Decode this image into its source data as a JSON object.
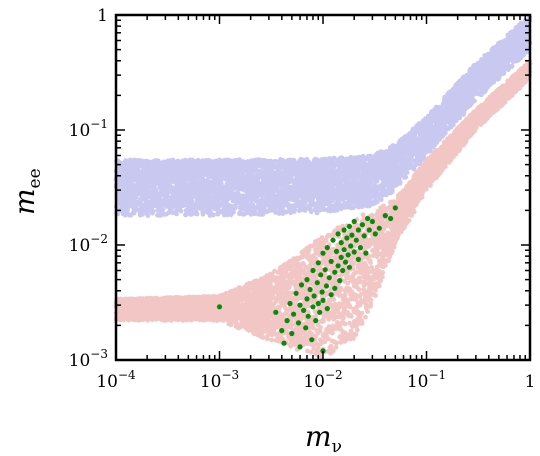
{
  "chart_data": {
    "type": "scatter",
    "x_scale": "log",
    "y_scale": "log",
    "xlim": [
      0.0001,
      1
    ],
    "ylim": [
      0.001,
      1
    ],
    "x_ticks": [
      0.0001,
      0.001,
      0.01,
      0.1,
      1
    ],
    "y_ticks": [
      0.001,
      0.01,
      0.1,
      1
    ],
    "x_tick_labels": [
      {
        "base": "10",
        "exp": "−4"
      },
      {
        "base": "10",
        "exp": "−3"
      },
      {
        "base": "10",
        "exp": "−2"
      },
      {
        "base": "10",
        "exp": "−1"
      },
      {
        "base": "1",
        "exp": ""
      }
    ],
    "y_tick_labels": [
      {
        "base": "10",
        "exp": "−3"
      },
      {
        "base": "10",
        "exp": "−2"
      },
      {
        "base": "10",
        "exp": "−1"
      },
      {
        "base": "1",
        "exp": ""
      }
    ],
    "xlabel": {
      "main": "m",
      "sub": "ν"
    },
    "ylabel": {
      "main": "m",
      "sub": "ee"
    },
    "grid": false,
    "legend": "none",
    "series": [
      {
        "color": "#c8c8f0",
        "description_kind": "band",
        "band": {
          "x": [
            0.0001,
            0.001,
            0.01,
            0.03,
            0.05,
            0.1,
            0.3,
            1
          ],
          "y_low": [
            0.018,
            0.018,
            0.019,
            0.022,
            0.03,
            0.06,
            0.18,
            0.5
          ],
          "y_high": [
            0.055,
            0.055,
            0.056,
            0.06,
            0.075,
            0.13,
            0.38,
            1.0
          ]
        }
      },
      {
        "color": "#f2c6c4",
        "description_kind": "band",
        "band": {
          "x": [
            0.0001,
            0.001,
            0.003,
            0.01,
            0.02,
            0.03,
            0.05,
            0.1,
            0.3,
            1
          ],
          "y_low": [
            0.0022,
            0.0022,
            0.0015,
            0.001,
            0.0015,
            0.003,
            0.01,
            0.03,
            0.1,
            0.28
          ],
          "y_high": [
            0.0034,
            0.0036,
            0.0055,
            0.012,
            0.017,
            0.02,
            0.025,
            0.055,
            0.15,
            0.4
          ]
        }
      },
      {
        "color": "#0a8a0a",
        "points": [
          [
            0.001,
            0.0029
          ],
          [
            0.0035,
            0.0026
          ],
          [
            0.004,
            0.0018
          ],
          [
            0.0042,
            0.0014
          ],
          [
            0.0045,
            0.0022
          ],
          [
            0.0048,
            0.0031
          ],
          [
            0.005,
            0.0017
          ],
          [
            0.0052,
            0.0025
          ],
          [
            0.0055,
            0.0038
          ],
          [
            0.0058,
            0.0021
          ],
          [
            0.006,
            0.0013
          ],
          [
            0.006,
            0.003
          ],
          [
            0.0062,
            0.0045
          ],
          [
            0.0065,
            0.0027
          ],
          [
            0.0068,
            0.0019
          ],
          [
            0.007,
            0.0034
          ],
          [
            0.007,
            0.005
          ],
          [
            0.0072,
            0.0024
          ],
          [
            0.0075,
            0.0041
          ],
          [
            0.0078,
            0.0015
          ],
          [
            0.008,
            0.0029
          ],
          [
            0.008,
            0.006
          ],
          [
            0.0082,
            0.0036
          ],
          [
            0.0085,
            0.0022
          ],
          [
            0.0088,
            0.0047
          ],
          [
            0.009,
            0.0031
          ],
          [
            0.009,
            0.007
          ],
          [
            0.0093,
            0.0026
          ],
          [
            0.0095,
            0.0055
          ],
          [
            0.0098,
            0.0039
          ],
          [
            0.01,
            0.0012
          ],
          [
            0.01,
            0.0033
          ],
          [
            0.01,
            0.0085
          ],
          [
            0.0105,
            0.0061
          ],
          [
            0.0108,
            0.0044
          ],
          [
            0.011,
            0.0028
          ],
          [
            0.011,
            0.0095
          ],
          [
            0.0115,
            0.0052
          ],
          [
            0.012,
            0.0037
          ],
          [
            0.012,
            0.0072
          ],
          [
            0.0125,
            0.011
          ],
          [
            0.013,
            0.0058
          ],
          [
            0.013,
            0.0042
          ],
          [
            0.0135,
            0.0088
          ],
          [
            0.014,
            0.0066
          ],
          [
            0.014,
            0.0125
          ],
          [
            0.0145,
            0.0049
          ],
          [
            0.015,
            0.0078
          ],
          [
            0.015,
            0.0105
          ],
          [
            0.0155,
            0.006
          ],
          [
            0.016,
            0.0135
          ],
          [
            0.016,
            0.0091
          ],
          [
            0.0165,
            0.0071
          ],
          [
            0.017,
            0.0115
          ],
          [
            0.0175,
            0.0082
          ],
          [
            0.018,
            0.0145
          ],
          [
            0.018,
            0.0064
          ],
          [
            0.0185,
            0.0098
          ],
          [
            0.019,
            0.0122
          ],
          [
            0.02,
            0.0087
          ],
          [
            0.02,
            0.016
          ],
          [
            0.021,
            0.011
          ],
          [
            0.022,
            0.0075
          ],
          [
            0.022,
            0.0135
          ],
          [
            0.023,
            0.0095
          ],
          [
            0.024,
            0.015
          ],
          [
            0.025,
            0.012
          ],
          [
            0.026,
            0.0085
          ],
          [
            0.027,
            0.017
          ],
          [
            0.028,
            0.0135
          ],
          [
            0.03,
            0.016
          ],
          [
            0.032,
            0.0125
          ],
          [
            0.035,
            0.014
          ],
          [
            0.04,
            0.018
          ],
          [
            0.045,
            0.017
          ],
          [
            0.05,
            0.021
          ]
        ]
      }
    ]
  }
}
